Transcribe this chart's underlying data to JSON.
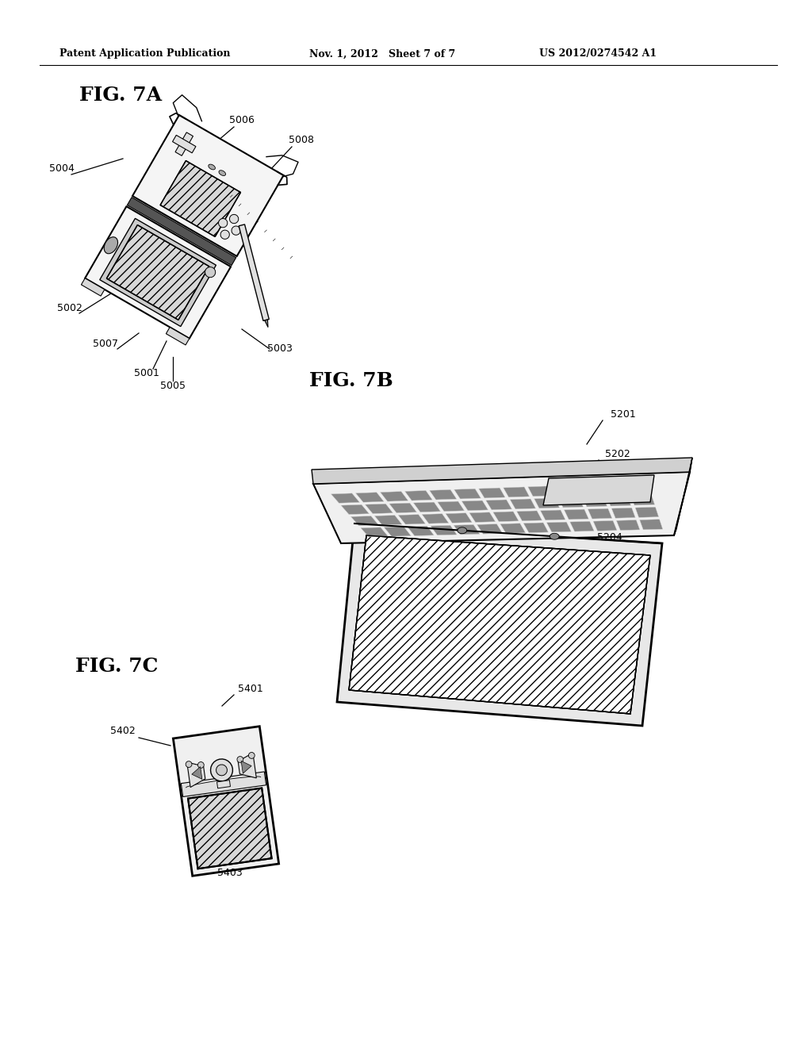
{
  "bg_color": "#ffffff",
  "header_left": "Patent Application Publication",
  "header_mid": "Nov. 1, 2012   Sheet 7 of 7",
  "header_right": "US 2012/0274542 A1",
  "fig7a_label": "FIG. 7A",
  "fig7b_label": "FIG. 7B",
  "fig7c_label": "FIG. 7C",
  "line_color": "#000000",
  "text_color": "#000000",
  "gray_light": "#f0f0f0",
  "gray_mid": "#d0d0d0",
  "gray_dark": "#888888"
}
